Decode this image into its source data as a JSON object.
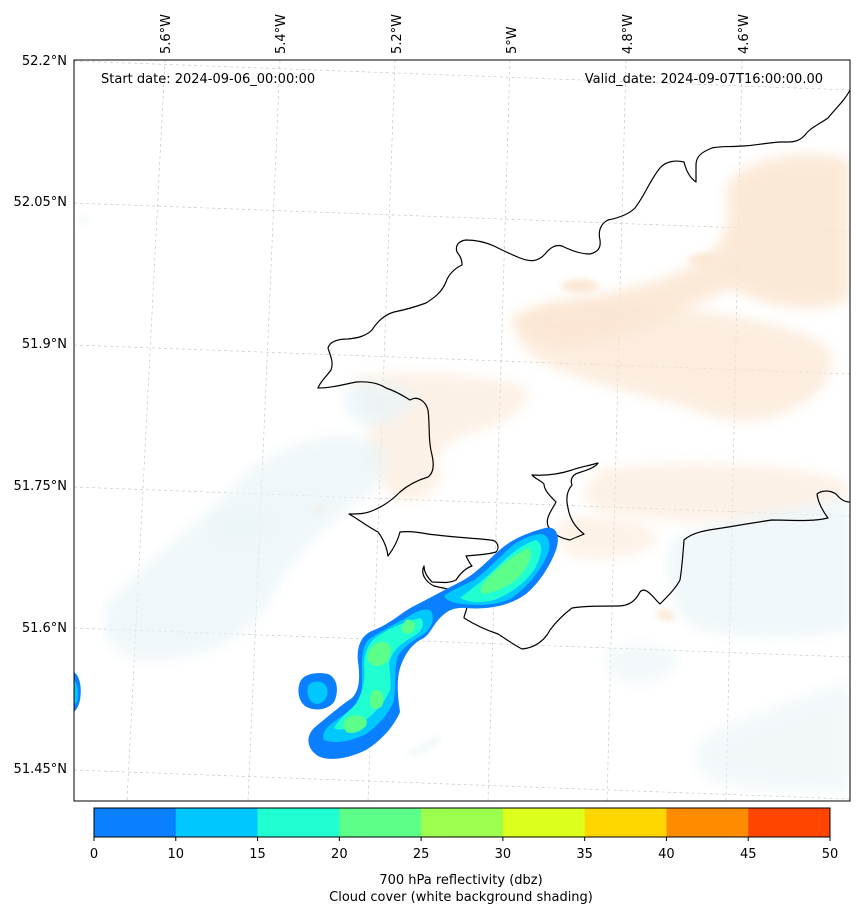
{
  "header": {
    "start_date": "Start date: 2024-09-06_00:00:00",
    "valid_date": "Valid_date: 2024-09-07T16:00:00.00"
  },
  "axes": {
    "lat_labels": [
      "52.2°N",
      "52.05°N",
      "51.9°N",
      "51.75°N",
      "51.6°N",
      "51.45°N"
    ],
    "lon_labels": [
      "5.6°W",
      "5.4°W",
      "5.2°W",
      "5°W",
      "4.8°W",
      "4.6°W"
    ]
  },
  "colorbar": {
    "ticks": [
      "0",
      "10",
      "15",
      "20",
      "25",
      "30",
      "35",
      "40",
      "45",
      "50"
    ],
    "colors": [
      "#0a7fff",
      "#00c8ff",
      "#1fffd2",
      "#5cff8a",
      "#9cff4e",
      "#dcff1e",
      "#ffd700",
      "#ff8c00",
      "#ff4500"
    ],
    "label_line1": "700 hPa reflectivity (dbz)",
    "label_line2": "Cloud cover (white background shading)"
  },
  "colors": {
    "cloud_warm": "#fbe6d2",
    "cloud_cool": "#eef6f9",
    "coastline": "#000000",
    "gridline": "#c8c8c8"
  }
}
